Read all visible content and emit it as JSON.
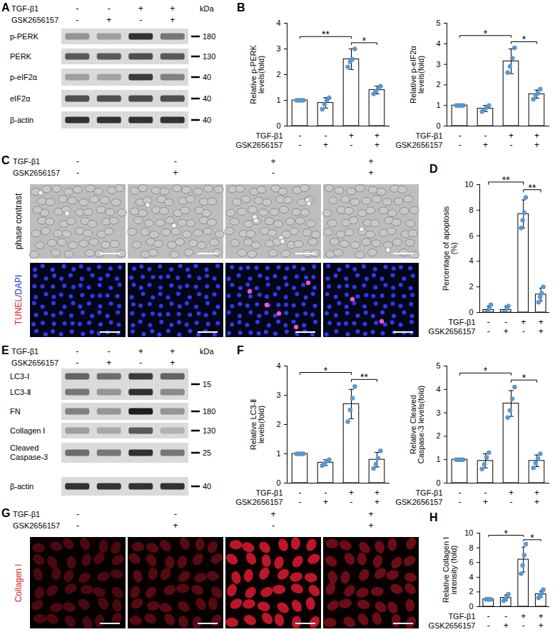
{
  "blots": [
    {
      "panel": "A",
      "conditions": [
        {
          "label": "TGF-β1",
          "values": [
            "-",
            "-",
            "+",
            "+"
          ]
        },
        {
          "label": "GSK2656157",
          "values": [
            "-",
            "+",
            "-",
            "+"
          ]
        }
      ],
      "unit": "kDa",
      "rows": [
        {
          "names": [
            "p-PERK"
          ],
          "kda": 180
        },
        {
          "names": [
            "PERK"
          ],
          "kda": 130
        },
        {
          "names": [
            "p-eIF2α"
          ],
          "kda": 40
        },
        {
          "names": [
            "eIF2α"
          ],
          "kda": 40
        },
        {
          "names": [
            "β-actin"
          ],
          "kda": 40
        }
      ]
    },
    {
      "panel": "E",
      "conditions": [
        {
          "label": "TGF-β1",
          "values": [
            "-",
            "-",
            "+",
            "+"
          ]
        },
        {
          "label": "GSK2656157",
          "values": [
            "-",
            "+",
            "-",
            "+"
          ]
        }
      ],
      "unit": "kDa",
      "rows": [
        {
          "names": [
            "LC3-Ⅰ",
            "LC3-Ⅱ"
          ],
          "kda": 15
        },
        {
          "names": [
            "FN"
          ],
          "kda": 180
        },
        {
          "names": [
            "Collagen Ⅰ"
          ],
          "kda": 130
        },
        {
          "names": [
            "Cleaved\nCaspase-3"
          ],
          "kda": 25
        },
        {
          "names": [
            "β-actin"
          ],
          "kda": 40
        }
      ]
    }
  ],
  "micrographs": [
    {
      "panel": "C",
      "conditions": [
        {
          "label": "TGF-β1",
          "values": [
            "-",
            "-",
            "+",
            "+"
          ]
        },
        {
          "label": "GSK2656157",
          "values": [
            "-",
            "+",
            "-",
            "+"
          ]
        }
      ],
      "rows": [
        "phase contrast",
        "TUNEL/DAPI"
      ]
    },
    {
      "panel": "G",
      "conditions": [
        {
          "label": "TGF-β1",
          "values": [
            "-",
            "-",
            "+",
            "+"
          ]
        },
        {
          "label": "GSK2656157",
          "values": [
            "-",
            "+",
            "-",
            "+"
          ]
        }
      ],
      "rows": [
        "Collagen Ⅰ"
      ]
    }
  ],
  "chart_data": [
    {
      "panel": "B",
      "type": "bar",
      "ylabel": "Relative p-PERK\nlevels(fold)",
      "categories": [
        null,
        null,
        null,
        null
      ],
      "conditions": [
        {
          "label": "TGF-β1",
          "values": [
            "-",
            "-",
            "+",
            "+"
          ]
        },
        {
          "label": "GSK2656157",
          "values": [
            "-",
            "+",
            "-",
            "+"
          ]
        }
      ],
      "values": [
        1,
        0.9,
        2.6,
        1.4
      ],
      "errors": [
        0,
        0.2,
        0.4,
        0.15
      ],
      "points": [
        [
          1,
          1,
          1,
          1
        ],
        [
          0.65,
          0.85,
          1.0,
          1.1
        ],
        [
          2.3,
          2.5,
          2.6,
          3.0
        ],
        [
          1.25,
          1.35,
          1.45,
          1.55
        ]
      ],
      "significance": [
        {
          "from": 0,
          "to": 2,
          "label": "**"
        },
        {
          "from": 2,
          "to": 3,
          "label": "*"
        }
      ],
      "ylim": [
        0,
        4
      ],
      "yticks": [
        0,
        1,
        2,
        3,
        4
      ],
      "color": "#ffffff",
      "tick_labels": "y"
    },
    {
      "panel": "B",
      "type": "bar",
      "ylabel": "Relative p-eIF2α\nlevels(fold)",
      "categories": [
        null,
        null,
        null,
        null
      ],
      "conditions": [
        {
          "label": "TGF-β1",
          "values": [
            "-",
            "-",
            "+",
            "+"
          ]
        },
        {
          "label": "GSK2656157",
          "values": [
            "-",
            "+",
            "-",
            "+"
          ]
        }
      ],
      "values": [
        1,
        0.85,
        3.15,
        1.55
      ],
      "errors": [
        0,
        0.15,
        0.6,
        0.2
      ],
      "points": [
        [
          1,
          1,
          1,
          1
        ],
        [
          0.7,
          0.8,
          0.9,
          1.0
        ],
        [
          2.6,
          2.9,
          3.3,
          3.8
        ],
        [
          1.3,
          1.5,
          1.6,
          1.8
        ]
      ],
      "significance": [
        {
          "from": 0,
          "to": 2,
          "label": "*"
        },
        {
          "from": 2,
          "to": 3,
          "label": "*"
        }
      ],
      "ylim": [
        0,
        5
      ],
      "yticks": [
        0,
        1,
        2,
        3,
        4,
        5
      ],
      "color": "#ffffff",
      "tick_labels": "y"
    },
    {
      "panel": "D",
      "type": "bar",
      "ylabel": "Percentage of apoptosis\n(%)",
      "categories": [
        null,
        null,
        null,
        null
      ],
      "conditions": [
        {
          "label": "TGF-β1",
          "values": [
            "-",
            "-",
            "+",
            "+"
          ]
        },
        {
          "label": "GSK2656157",
          "values": [
            "-",
            "+",
            "-",
            "+"
          ]
        }
      ],
      "values": [
        0.2,
        0.2,
        7.7,
        1.4
      ],
      "errors": [
        0.3,
        0.3,
        1.1,
        0.5
      ],
      "points": [
        [
          0,
          0,
          0.3,
          0.6
        ],
        [
          0,
          0,
          0.3,
          0.5
        ],
        [
          6.6,
          7.2,
          7.8,
          9.0
        ],
        [
          0.8,
          1.2,
          1.5,
          2.0
        ]
      ],
      "significance": [
        {
          "from": 0,
          "to": 2,
          "label": "**"
        },
        {
          "from": 2,
          "to": 3,
          "label": "**"
        }
      ],
      "ylim": [
        0,
        10
      ],
      "yticks": [
        0,
        2,
        4,
        6,
        8,
        10
      ],
      "color": "#ffffff",
      "tick_labels": "y"
    },
    {
      "panel": "F",
      "type": "bar",
      "ylabel": "Relative LC3-Ⅱ\nlevels(fold)",
      "categories": [
        null,
        null,
        null,
        null
      ],
      "conditions": [
        {
          "label": "TGF-β1",
          "values": [
            "-",
            "-",
            "+",
            "+"
          ]
        },
        {
          "label": "GSK2656157",
          "values": [
            "-",
            "+",
            "-",
            "+"
          ]
        }
      ],
      "values": [
        1,
        0.7,
        2.7,
        0.8
      ],
      "errors": [
        0,
        0.1,
        0.5,
        0.25
      ],
      "points": [
        [
          1,
          1,
          1,
          1
        ],
        [
          0.6,
          0.65,
          0.75,
          0.8
        ],
        [
          2.1,
          2.5,
          2.9,
          3.3
        ],
        [
          0.5,
          0.65,
          0.85,
          1.1
        ]
      ],
      "significance": [
        {
          "from": 0,
          "to": 2,
          "label": "*"
        },
        {
          "from": 2,
          "to": 3,
          "label": "**"
        }
      ],
      "ylim": [
        0,
        4
      ],
      "yticks": [
        0,
        1,
        2,
        3,
        4
      ],
      "color": "#ffffff",
      "tick_labels": "y"
    },
    {
      "panel": "F",
      "type": "bar",
      "ylabel": "Relative Cleaved\nCaspase-3 levels(fold)",
      "categories": [
        null,
        null,
        null,
        null
      ],
      "conditions": [
        {
          "label": "TGF-β1",
          "values": [
            "-",
            "-",
            "+",
            "+"
          ]
        },
        {
          "label": "GSK2656157",
          "values": [
            "-",
            "+",
            "-",
            "+"
          ]
        }
      ],
      "values": [
        1,
        0.95,
        3.4,
        0.95
      ],
      "errors": [
        0,
        0.3,
        0.55,
        0.25
      ],
      "points": [
        [
          1,
          1,
          1,
          1
        ],
        [
          0.6,
          0.8,
          1.1,
          1.3
        ],
        [
          2.8,
          3.1,
          3.6,
          4.1
        ],
        [
          0.65,
          0.85,
          1.05,
          1.25
        ]
      ],
      "significance": [
        {
          "from": 0,
          "to": 2,
          "label": "*"
        },
        {
          "from": 2,
          "to": 3,
          "label": "*"
        }
      ],
      "ylim": [
        0,
        5
      ],
      "yticks": [
        0,
        1,
        2,
        3,
        4,
        5
      ],
      "color": "#ffffff",
      "tick_labels": "y"
    },
    {
      "panel": "H",
      "type": "bar",
      "ylabel": "Relative Collagen Ⅰ\nintensity (fold)",
      "categories": [
        null,
        null,
        null,
        null
      ],
      "conditions": [
        {
          "label": "TGF-β1",
          "values": [
            "-",
            "-",
            "+",
            "+"
          ]
        },
        {
          "label": "GSK2656157",
          "values": [
            "-",
            "+",
            "-",
            "+"
          ]
        }
      ],
      "values": [
        1,
        1.2,
        6.4,
        1.7
      ],
      "errors": [
        0,
        0.4,
        1.7,
        0.45
      ],
      "points": [
        [
          1,
          1,
          1,
          1
        ],
        [
          0.8,
          1.0,
          1.3,
          1.7
        ],
        [
          4.5,
          5.6,
          7.0,
          8.5
        ],
        [
          1.2,
          1.5,
          1.8,
          2.3
        ]
      ],
      "significance": [
        {
          "from": 0,
          "to": 2,
          "label": "*"
        },
        {
          "from": 2,
          "to": 3,
          "label": "*"
        }
      ],
      "ylim": [
        0,
        10
      ],
      "yticks": [
        0,
        2,
        4,
        6,
        8,
        10
      ],
      "color": "#ffffff",
      "tick_labels": "y"
    }
  ]
}
